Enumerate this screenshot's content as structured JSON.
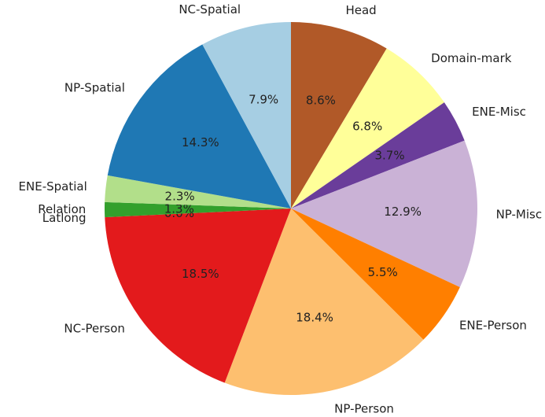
{
  "chart_data": {
    "type": "pie",
    "categories": [
      "Head",
      "Domain-mark",
      "ENE-Misc",
      "NP-Misc",
      "ENE-Person",
      "NP-Person",
      "NC-Person",
      "Latlong",
      "Relation",
      "ENE-Spatial",
      "NP-Spatial",
      "NC-Spatial"
    ],
    "values": [
      8.6,
      6.8,
      3.7,
      12.9,
      5.5,
      18.4,
      18.5,
      0.0,
      1.3,
      2.3,
      14.3,
      7.9
    ],
    "value_labels": [
      "8.6%",
      "6.8%",
      "3.7%",
      "12.9%",
      "5.5%",
      "18.4%",
      "18.5%",
      "0.0%",
      "1.3%",
      "2.3%",
      "14.3%",
      "7.9%"
    ],
    "colors": [
      "#b15928",
      "#ffff99",
      "#6a3d9a",
      "#cab2d6",
      "#ff7f00",
      "#fdbf6f",
      "#e31a1c",
      "#fb9a99",
      "#33a02c",
      "#b2df8a",
      "#1f78b4",
      "#a6cee3"
    ],
    "startangle": 90,
    "counterclock": false
  }
}
